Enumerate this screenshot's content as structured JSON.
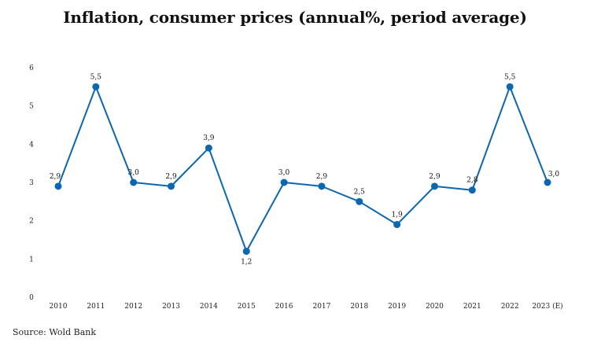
{
  "chart_data": {
    "type": "line",
    "title": "Inflation, consumer prices (annual%, period average)",
    "xlabel": "",
    "ylabel": "",
    "categories": [
      "2010",
      "2011",
      "2012",
      "2013",
      "2014",
      "2015",
      "2016",
      "2017",
      "2018",
      "2019",
      "2020",
      "2021",
      "2022",
      "2023 (E)"
    ],
    "series": [
      {
        "name": "Inflation",
        "values": [
          2.9,
          5.5,
          3.0,
          2.9,
          3.9,
          1.2,
          3.0,
          2.9,
          2.5,
          1.9,
          2.9,
          2.8,
          5.5,
          3.0
        ]
      }
    ],
    "data_labels": [
      "2,9",
      "5,5",
      "3,0",
      "2,9",
      "3,9",
      "1,2",
      "3,0",
      "2,9",
      "2,5",
      "1,9",
      "2,9",
      "2,8",
      "5,5",
      "3,0"
    ],
    "ylim": [
      0,
      6
    ],
    "yticks": [
      0,
      1,
      2,
      3,
      4,
      5,
      6
    ],
    "grid": false,
    "color": "#0b67b2"
  },
  "source": "Source: Wold Bank"
}
